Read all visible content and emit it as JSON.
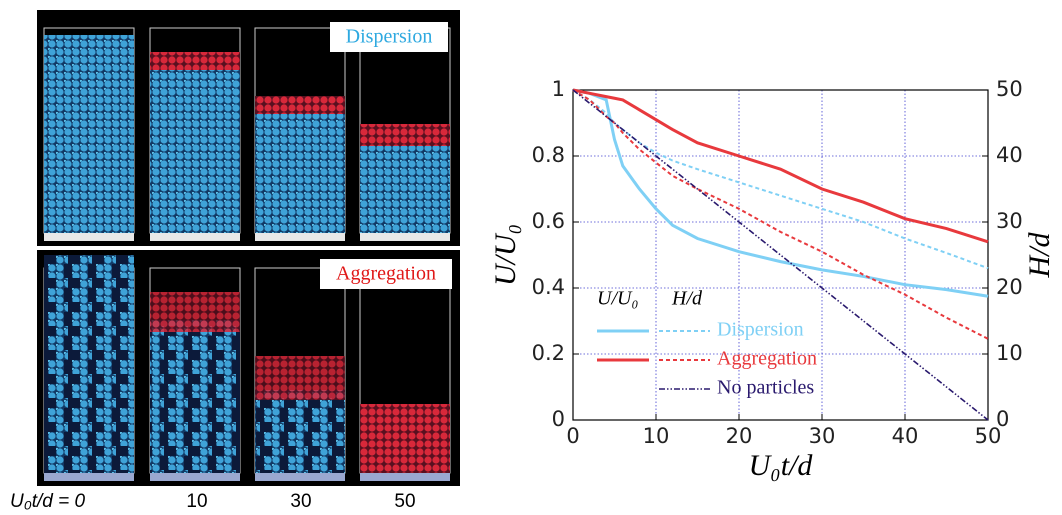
{
  "image": {
    "labels": [
      "Dispersion",
      "Aggregation"
    ],
    "time_label": "U₀t/d = 0",
    "times": [
      "10",
      "30",
      "50"
    ]
  },
  "chart_data": {
    "type": "line",
    "xlabel": "U₀t/d",
    "ylabel": "U/U₀",
    "y2label": "H/d",
    "legend_headers": [
      "U/U₀",
      "H/d"
    ],
    "x": [
      0,
      2,
      4,
      5,
      6,
      8,
      10,
      12,
      15,
      20,
      25,
      30,
      35,
      40,
      45,
      50
    ],
    "series": [
      {
        "name": "Dispersion",
        "color": "#7fd0f5",
        "u": [
          1,
          0.99,
          0.97,
          0.85,
          0.77,
          0.7,
          0.64,
          0.59,
          0.55,
          0.51,
          0.48,
          0.455,
          0.435,
          0.41,
          0.395,
          0.375
        ],
        "h": [
          50,
          48.5,
          46.5,
          45,
          44,
          42,
          40.5,
          39.3,
          38,
          36,
          34,
          32,
          30,
          27.5,
          25.3,
          23
        ]
      },
      {
        "name": "Aggregation",
        "color": "#e8393d",
        "u": [
          1,
          0.99,
          0.98,
          0.975,
          0.97,
          0.94,
          0.91,
          0.88,
          0.84,
          0.8,
          0.76,
          0.7,
          0.66,
          0.61,
          0.58,
          0.54
        ],
        "h": [
          50,
          48.5,
          46,
          45,
          43.5,
          41,
          39,
          37,
          35,
          32,
          28.5,
          25.5,
          22,
          19,
          15.5,
          12.3
        ]
      },
      {
        "name": "No particles",
        "color": "#2a1a6e",
        "h": [
          50,
          48,
          46,
          45,
          44,
          42,
          40,
          38,
          35,
          30,
          25,
          20,
          15,
          10,
          5,
          0
        ]
      }
    ],
    "xlim": [
      0,
      50
    ],
    "ylim": [
      0,
      1
    ],
    "y2lim": [
      0,
      50
    ],
    "xticks": [
      0,
      10,
      20,
      30,
      40,
      50
    ],
    "yticks": [
      0,
      0.2,
      0.4,
      0.6,
      0.8,
      1
    ],
    "y2ticks": [
      0,
      10,
      20,
      30,
      40,
      50
    ],
    "grid": true
  }
}
